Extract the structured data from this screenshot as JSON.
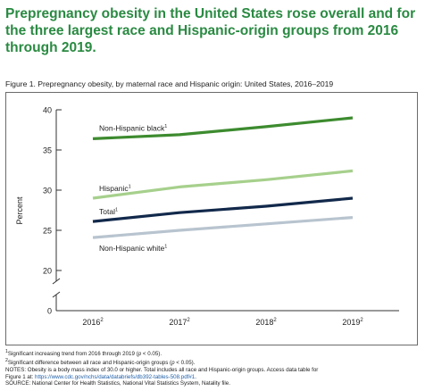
{
  "headline": "Prepregnancy obesity in the United States rose overall and for the three largest race and Hispanic-origin groups from 2016 through 2019.",
  "figure_title": "Figure 1. Prepregnancy obesity, by maternal race and Hispanic origin: United States, 2016–2019",
  "notes": {
    "line1_pre": "Significant increasing trend from 2016 through 2019 (",
    "line1_p": "p",
    "line1_post": " < 0.05).",
    "line2_pre": "Significant difference between all race and Hispanic-origin groups (",
    "line2_p": "p",
    "line2_post": " < 0.05).",
    "line3": "NOTES: Obesity is a body mass index of 30.0 or higher. Total includes all race and Hispanic-origin groups. Access data table for",
    "line4_pre": "Figure 1 at: ",
    "line4_link": "https://www.cdc.gov/nchs/data/databriefs/db392-tables-508.pdf#1",
    "line4_post": ".",
    "line5": "SOURCE: National Center for Health Statistics, National Vital Statistics System, Natality file."
  },
  "chart_data": {
    "type": "line",
    "ylabel": "Percent",
    "xlabel": "",
    "ylim": [
      0,
      40
    ],
    "y_ticks": [
      0,
      20,
      25,
      30,
      35,
      40
    ],
    "axis_break": "between 0 and 20",
    "grid": false,
    "categories": [
      "2016",
      "2017",
      "2018",
      "2019"
    ],
    "category_superscript": "2",
    "series": [
      {
        "name": "Non-Hispanic black",
        "superscript": "1",
        "color": "#3d8b2f",
        "values": [
          36.4,
          36.9,
          37.9,
          39.0
        ]
      },
      {
        "name": "Hispanic",
        "superscript": "1",
        "color": "#a6d08c",
        "values": [
          29.0,
          30.4,
          31.3,
          32.4
        ]
      },
      {
        "name": "Total",
        "superscript": "1",
        "color": "#12294b",
        "values": [
          26.1,
          27.2,
          28.0,
          29.0
        ]
      },
      {
        "name": "Non-Hispanic white",
        "superscript": "1",
        "color": "#b8c4cf",
        "values": [
          24.1,
          25.0,
          25.8,
          26.6
        ]
      }
    ]
  }
}
